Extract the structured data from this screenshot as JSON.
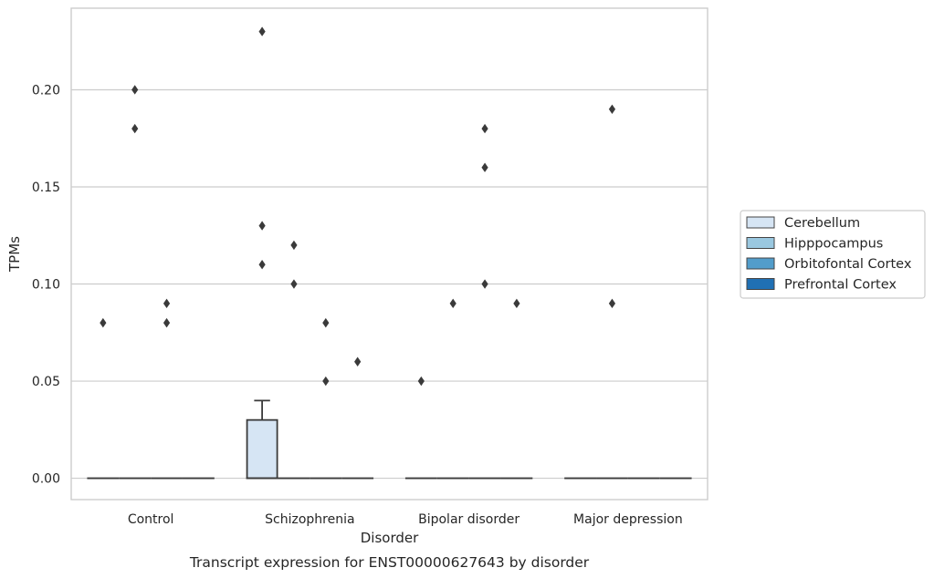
{
  "chart_data": {
    "type": "box",
    "xlabel": "Disorder",
    "ylabel": "TPMs",
    "caption": "Transcript expression for ENST00000627643 by disorder",
    "categories": [
      "Control",
      "Schizophrenia",
      "Bipolar disorder",
      "Major depression"
    ],
    "yticks": [
      "0.00",
      "0.05",
      "0.10",
      "0.15",
      "0.20"
    ],
    "ylim": [
      -0.011,
      0.242
    ],
    "grid": "y",
    "legend_position": "right",
    "series": [
      {
        "name": "Cerebellum",
        "color": "#d6e5f4",
        "boxes": [
          {
            "q1": 0,
            "median": 0,
            "q3": 0,
            "whisker_low": 0,
            "whisker_high": 0,
            "outliers": [
              0.08
            ]
          },
          {
            "q1": 0,
            "median": 0,
            "q3": 0.03,
            "whisker_low": 0,
            "whisker_high": 0.04,
            "outliers": [
              0.23,
              0.13,
              0.11
            ]
          },
          {
            "q1": 0,
            "median": 0,
            "q3": 0,
            "whisker_low": 0,
            "whisker_high": 0,
            "outliers": [
              0.05
            ]
          },
          {
            "q1": 0,
            "median": 0,
            "q3": 0,
            "whisker_low": 0,
            "whisker_high": 0,
            "outliers": []
          }
        ]
      },
      {
        "name": "Hipppocampus",
        "color": "#9ac8e0",
        "boxes": [
          {
            "q1": 0,
            "median": 0,
            "q3": 0,
            "whisker_low": 0,
            "whisker_high": 0,
            "outliers": [
              0.2,
              0.18
            ]
          },
          {
            "q1": 0,
            "median": 0,
            "q3": 0,
            "whisker_low": 0,
            "whisker_high": 0,
            "outliers": [
              0.12,
              0.1
            ]
          },
          {
            "q1": 0,
            "median": 0,
            "q3": 0,
            "whisker_low": 0,
            "whisker_high": 0,
            "outliers": [
              0.09
            ]
          },
          {
            "q1": 0,
            "median": 0,
            "q3": 0,
            "whisker_low": 0,
            "whisker_high": 0,
            "outliers": [
              0.19,
              0.09
            ]
          }
        ]
      },
      {
        "name": "Orbitofontal Cortex",
        "color": "#529dcb",
        "boxes": [
          {
            "q1": 0,
            "median": 0,
            "q3": 0,
            "whisker_low": 0,
            "whisker_high": 0,
            "outliers": [
              0.09,
              0.08
            ]
          },
          {
            "q1": 0,
            "median": 0,
            "q3": 0,
            "whisker_low": 0,
            "whisker_high": 0,
            "outliers": [
              0.08,
              0.05
            ]
          },
          {
            "q1": 0,
            "median": 0,
            "q3": 0,
            "whisker_low": 0,
            "whisker_high": 0,
            "outliers": [
              0.18,
              0.16,
              0.1
            ]
          },
          {
            "q1": 0,
            "median": 0,
            "q3": 0,
            "whisker_low": 0,
            "whisker_high": 0,
            "outliers": []
          }
        ]
      },
      {
        "name": "Prefrontal Cortex",
        "color": "#2070b4",
        "boxes": [
          {
            "q1": 0,
            "median": 0,
            "q3": 0,
            "whisker_low": 0,
            "whisker_high": 0,
            "outliers": []
          },
          {
            "q1": 0,
            "median": 0,
            "q3": 0,
            "whisker_low": 0,
            "whisker_high": 0,
            "outliers": [
              0.06
            ]
          },
          {
            "q1": 0,
            "median": 0,
            "q3": 0,
            "whisker_low": 0,
            "whisker_high": 0,
            "outliers": [
              0.09
            ]
          },
          {
            "q1": 0,
            "median": 0,
            "q3": 0,
            "whisker_low": 0,
            "whisker_high": 0,
            "outliers": []
          }
        ]
      }
    ],
    "colors": {
      "grid": "#cccccc",
      "frame": "#cccccc",
      "line": "#3a3a3a",
      "legend_border": "#cccccc"
    }
  }
}
